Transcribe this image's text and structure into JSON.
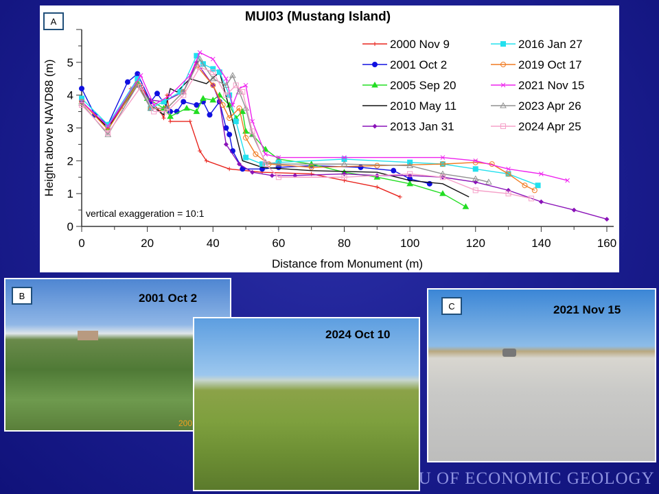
{
  "chart_data": {
    "type": "line",
    "title": "MUI03 (Mustang Island)",
    "xlabel": "Distance from Monument (m)",
    "ylabel": "Height above NAVD88 (m)",
    "xlim": [
      0,
      160
    ],
    "ylim": [
      0,
      6
    ],
    "xticks": [
      0,
      20,
      40,
      60,
      80,
      100,
      120,
      140,
      160
    ],
    "yticks": [
      0,
      1,
      2,
      3,
      4,
      5
    ],
    "annotation": "vertical exaggeration = 10:1",
    "panel_label": "A",
    "legend_position": "top-right",
    "grid": false,
    "series": [
      {
        "name": "2000 Nov 9",
        "color": "#e8231c",
        "marker": "plus",
        "points": [
          [
            0,
            3.8
          ],
          [
            4,
            3.4
          ],
          [
            8,
            3.1
          ],
          [
            12,
            3.6
          ],
          [
            15,
            4.2
          ],
          [
            18,
            4.3
          ],
          [
            21,
            3.8
          ],
          [
            24,
            3.5
          ],
          [
            25,
            3.3
          ],
          [
            26,
            4.0
          ],
          [
            27,
            3.2
          ],
          [
            33,
            3.2
          ],
          [
            36,
            2.3
          ],
          [
            38,
            2.0
          ],
          [
            45,
            1.75
          ],
          [
            55,
            1.65
          ],
          [
            70,
            1.6
          ],
          [
            80,
            1.4
          ],
          [
            90,
            1.2
          ],
          [
            97,
            0.9
          ]
        ]
      },
      {
        "name": "2001 Oct 2",
        "color": "#1010e0",
        "marker": "circle",
        "points": [
          [
            0,
            4.2
          ],
          [
            4,
            3.4
          ],
          [
            8,
            3.1
          ],
          [
            14,
            4.4
          ],
          [
            17,
            4.65
          ],
          [
            21,
            3.8
          ],
          [
            23,
            4.05
          ],
          [
            27,
            3.5
          ],
          [
            29,
            3.5
          ],
          [
            31,
            3.8
          ],
          [
            35,
            3.7
          ],
          [
            37,
            3.8
          ],
          [
            39,
            3.4
          ],
          [
            42,
            3.8
          ],
          [
            44,
            3.0
          ],
          [
            45,
            2.8
          ],
          [
            46,
            2.3
          ],
          [
            49,
            1.75
          ],
          [
            55,
            1.75
          ],
          [
            60,
            1.8
          ],
          [
            70,
            1.85
          ],
          [
            85,
            1.8
          ],
          [
            95,
            1.7
          ],
          [
            100,
            1.45
          ],
          [
            106,
            1.3
          ]
        ]
      },
      {
        "name": "2005 Sep 20",
        "color": "#22dd22",
        "marker": "triangle",
        "points": [
          [
            0,
            3.8
          ],
          [
            8,
            3.0
          ],
          [
            17,
            4.4
          ],
          [
            20,
            3.9
          ],
          [
            25,
            3.6
          ],
          [
            27,
            3.35
          ],
          [
            32,
            3.6
          ],
          [
            35,
            3.5
          ],
          [
            37,
            3.9
          ],
          [
            40,
            3.85
          ],
          [
            42,
            4.0
          ],
          [
            45,
            3.7
          ],
          [
            47,
            3.3
          ],
          [
            49,
            3.5
          ],
          [
            50,
            2.9
          ],
          [
            52,
            2.8
          ],
          [
            56,
            2.35
          ],
          [
            60,
            2.05
          ],
          [
            70,
            1.9
          ],
          [
            80,
            1.65
          ],
          [
            90,
            1.5
          ],
          [
            100,
            1.3
          ],
          [
            110,
            1.0
          ],
          [
            117,
            0.6
          ]
        ]
      },
      {
        "name": "2010 May 11",
        "color": "#111111",
        "marker": "none",
        "points": [
          [
            0,
            3.8
          ],
          [
            8,
            3.0
          ],
          [
            17,
            4.3
          ],
          [
            21,
            3.7
          ],
          [
            25,
            3.4
          ],
          [
            27,
            4.2
          ],
          [
            29,
            4.1
          ],
          [
            33,
            4.5
          ],
          [
            38,
            4.35
          ],
          [
            42,
            4.7
          ],
          [
            45,
            3.6
          ],
          [
            49,
            2.0
          ],
          [
            55,
            1.8
          ],
          [
            70,
            1.7
          ],
          [
            90,
            1.65
          ],
          [
            100,
            1.4
          ],
          [
            110,
            1.3
          ],
          [
            118,
            0.9
          ]
        ]
      },
      {
        "name": "2013 Jan 31",
        "color": "#8a12b8",
        "marker": "diamond",
        "points": [
          [
            0,
            3.8
          ],
          [
            8,
            3.05
          ],
          [
            17,
            4.3
          ],
          [
            21,
            3.85
          ],
          [
            25,
            3.8
          ],
          [
            31,
            4.1
          ],
          [
            35,
            5.0
          ],
          [
            40,
            4.3
          ],
          [
            42,
            3.8
          ],
          [
            44,
            2.5
          ],
          [
            48,
            1.9
          ],
          [
            52,
            1.65
          ],
          [
            58,
            1.55
          ],
          [
            65,
            1.55
          ],
          [
            80,
            1.6
          ],
          [
            90,
            1.55
          ],
          [
            100,
            1.55
          ],
          [
            110,
            1.5
          ],
          [
            120,
            1.35
          ],
          [
            130,
            1.1
          ],
          [
            140,
            0.75
          ],
          [
            150,
            0.5
          ],
          [
            160,
            0.22
          ]
        ]
      },
      {
        "name": "2016 Jan 27",
        "color": "#22e0ee",
        "marker": "square",
        "points": [
          [
            0,
            3.9
          ],
          [
            8,
            3.1
          ],
          [
            17,
            4.5
          ],
          [
            21,
            3.6
          ],
          [
            25,
            3.8
          ],
          [
            30,
            4.1
          ],
          [
            35,
            5.2
          ],
          [
            37,
            4.95
          ],
          [
            40,
            4.8
          ],
          [
            42,
            4.7
          ],
          [
            45,
            4.0
          ],
          [
            47,
            3.2
          ],
          [
            50,
            2.1
          ],
          [
            55,
            1.9
          ],
          [
            60,
            1.95
          ],
          [
            80,
            2.05
          ],
          [
            100,
            1.95
          ],
          [
            110,
            1.9
          ],
          [
            120,
            1.75
          ],
          [
            130,
            1.6
          ],
          [
            139,
            1.25
          ]
        ]
      },
      {
        "name": "2019 Oct 17",
        "color": "#f07a20",
        "marker": "open-circle",
        "points": [
          [
            0,
            3.8
          ],
          [
            8,
            2.95
          ],
          [
            17,
            4.35
          ],
          [
            21,
            3.6
          ],
          [
            26,
            3.6
          ],
          [
            31,
            4.1
          ],
          [
            35,
            4.9
          ],
          [
            40,
            4.3
          ],
          [
            43,
            3.7
          ],
          [
            45,
            3.3
          ],
          [
            48,
            3.6
          ],
          [
            50,
            2.7
          ],
          [
            53,
            2.2
          ],
          [
            57,
            1.9
          ],
          [
            70,
            1.8
          ],
          [
            90,
            1.85
          ],
          [
            110,
            1.9
          ],
          [
            120,
            1.95
          ],
          [
            125,
            1.9
          ],
          [
            130,
            1.6
          ],
          [
            135,
            1.25
          ],
          [
            138,
            1.1
          ]
        ]
      },
      {
        "name": "2021 Nov 15",
        "color": "#ee22ee",
        "marker": "x",
        "points": [
          [
            0,
            3.8
          ],
          [
            8,
            3.05
          ],
          [
            18,
            4.6
          ],
          [
            22,
            3.7
          ],
          [
            27,
            4.0
          ],
          [
            33,
            4.6
          ],
          [
            36,
            5.3
          ],
          [
            40,
            5.1
          ],
          [
            44,
            4.5
          ],
          [
            46,
            3.7
          ],
          [
            48,
            4.2
          ],
          [
            50,
            4.3
          ],
          [
            52,
            3.2
          ],
          [
            56,
            2.2
          ],
          [
            60,
            2.1
          ],
          [
            80,
            2.1
          ],
          [
            110,
            2.1
          ],
          [
            120,
            2.0
          ],
          [
            130,
            1.75
          ],
          [
            140,
            1.6
          ],
          [
            148,
            1.4
          ]
        ]
      },
      {
        "name": "2023 Apr 26",
        "color": "#909090",
        "marker": "open-triangle",
        "points": [
          [
            0,
            3.75
          ],
          [
            8,
            2.8
          ],
          [
            17,
            4.3
          ],
          [
            21,
            3.6
          ],
          [
            26,
            3.6
          ],
          [
            31,
            4.1
          ],
          [
            36,
            5.1
          ],
          [
            40,
            4.5
          ],
          [
            44,
            4.3
          ],
          [
            46,
            4.6
          ],
          [
            48,
            4.1
          ],
          [
            50,
            3.6
          ],
          [
            52,
            2.8
          ],
          [
            56,
            1.95
          ],
          [
            60,
            1.9
          ],
          [
            80,
            1.9
          ],
          [
            100,
            1.85
          ],
          [
            110,
            1.6
          ],
          [
            120,
            1.45
          ],
          [
            124,
            1.35
          ]
        ]
      },
      {
        "name": "2024 Apr 25",
        "color": "#f5a0c8",
        "marker": "open-square",
        "points": [
          [
            0,
            3.7
          ],
          [
            8,
            2.85
          ],
          [
            18,
            4.25
          ],
          [
            22,
            3.5
          ],
          [
            26,
            3.5
          ],
          [
            31,
            4.0
          ],
          [
            36,
            4.85
          ],
          [
            40,
            4.7
          ],
          [
            44,
            4.0
          ],
          [
            47,
            4.3
          ],
          [
            49,
            4.1
          ],
          [
            52,
            2.9
          ],
          [
            56,
            1.9
          ],
          [
            60,
            1.5
          ],
          [
            80,
            1.5
          ],
          [
            100,
            1.6
          ],
          [
            110,
            1.5
          ],
          [
            120,
            1.1
          ],
          [
            130,
            1.0
          ],
          [
            137,
            0.85
          ]
        ]
      }
    ]
  },
  "photos": {
    "b": {
      "label": "B",
      "date": "2001 Oct 2",
      "stamp": "2001 10 2"
    },
    "middle": {
      "date": "2024 Oct 10"
    },
    "c": {
      "label": "C",
      "date": "2021 Nov 15"
    }
  },
  "footer": {
    "logo_text": "BUREAU OF ECONOMIC GEOLOGY"
  }
}
